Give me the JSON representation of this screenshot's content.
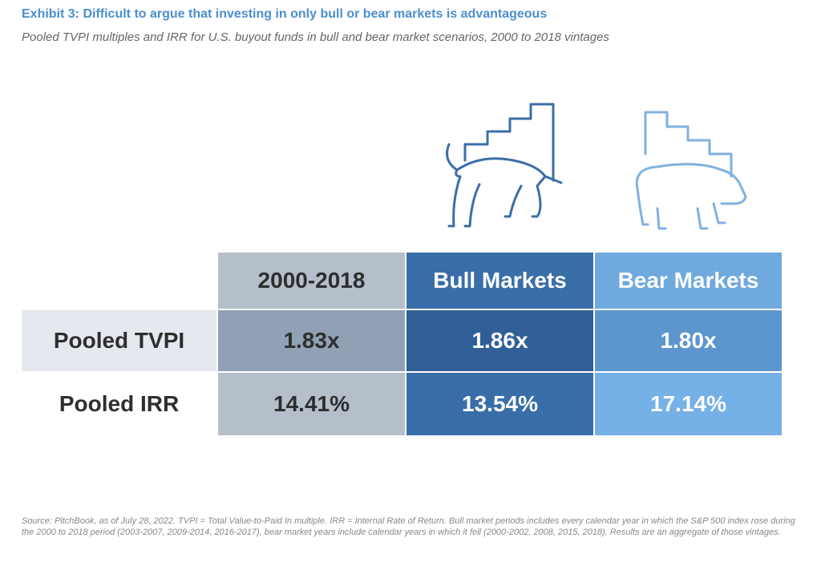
{
  "header": {
    "title": "Exhibit 3: Difficult to argue that investing in only bull or bear markets is advantageous",
    "subtitle": "Pooled TVPI multiples and IRR for U.S. buyout funds in bull and bear market scenarios, 2000 to 2018 vintages"
  },
  "table": {
    "columns": [
      "2000-2018",
      "Bull Markets",
      "Bear Markets"
    ],
    "rows": [
      [
        "Pooled TVPI",
        "1.83x",
        "1.86x",
        "1.80x"
      ],
      [
        "Pooled IRR",
        "14.41%",
        "13.54%",
        "17.14%"
      ]
    ]
  },
  "footnote": "Source: PitchBook, as of July 28, 2022. TVPI = Total Value-to-Paid In multiple. IRR = Internal Rate of Return. Bull market periods includes every calendar year in which the S&P 500 index rose during the 2000 to 2018 period (2003-2007, 2009-2014, 2016-2017), bear market years include calendar years in which it fell (2000-2002, 2008, 2015, 2018). Results are an aggregate of those vintages."
}
